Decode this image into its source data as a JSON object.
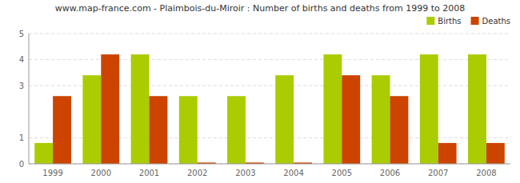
{
  "chart_data": {
    "type": "bar",
    "title": "www.map-france.com - Plaimbois-du-Miroir : Number of births and deaths from 1999 to 2008",
    "categories": [
      "1999",
      "2000",
      "2001",
      "2002",
      "2003",
      "2004",
      "2005",
      "2006",
      "2007",
      "2008"
    ],
    "series": [
      {
        "name": "Births",
        "color": "#aacc00",
        "values": [
          0.8,
          3.4,
          4.2,
          2.6,
          2.6,
          3.4,
          4.2,
          3.4,
          4.2,
          4.2
        ]
      },
      {
        "name": "Deaths",
        "color": "#cc4400",
        "values": [
          2.6,
          4.2,
          2.6,
          0.05,
          0.05,
          0.05,
          3.4,
          2.6,
          0.8,
          0.8
        ]
      }
    ],
    "ylim": [
      0,
      5
    ],
    "yticks": [
      0,
      1,
      3,
      4,
      5
    ],
    "grid": true,
    "legend": "upper right"
  }
}
